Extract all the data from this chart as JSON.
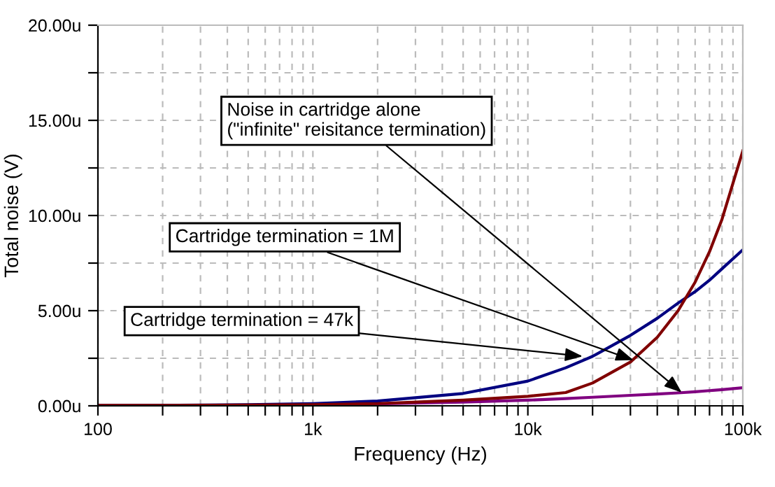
{
  "chart_data": {
    "type": "line",
    "xlabel": "Frequency (Hz)",
    "ylabel": "Total noise (V)",
    "log": "x",
    "x": [
      100,
      200,
      500,
      1000,
      2000,
      5000,
      10000,
      15000,
      20000,
      30000,
      40000,
      50000,
      60000,
      70000,
      80000,
      100000
    ],
    "series": [
      {
        "color": "#800080",
        "values": [
          null,
          null,
          null,
          0.05,
          0.1,
          0.2,
          0.3,
          0.38,
          0.45,
          0.55,
          0.62,
          0.68,
          0.74,
          0.8,
          0.85,
          0.95
        ]
      },
      {
        "color": "#000080",
        "values": [
          0.02,
          0.03,
          0.06,
          0.12,
          0.25,
          0.65,
          1.3,
          2.0,
          2.6,
          3.7,
          4.6,
          5.4,
          6.0,
          6.6,
          7.2,
          8.2
        ]
      },
      {
        "color": "#800000",
        "values": [
          0.02,
          0.02,
          0.04,
          0.06,
          0.12,
          0.3,
          0.5,
          0.7,
          1.2,
          2.3,
          3.6,
          5.0,
          6.5,
          8.1,
          9.8,
          13.4
        ]
      }
    ],
    "xlim": [
      100,
      100000
    ],
    "xticks": [
      {
        "value": 100,
        "label": "100"
      },
      {
        "value": 200,
        "label": null
      },
      {
        "value": 300,
        "label": null
      },
      {
        "value": 400,
        "label": null
      },
      {
        "value": 500,
        "label": null
      },
      {
        "value": 600,
        "label": null
      },
      {
        "value": 700,
        "label": null
      },
      {
        "value": 800,
        "label": null
      },
      {
        "value": 900,
        "label": null
      },
      {
        "value": 1000,
        "label": "1k"
      },
      {
        "value": 2000,
        "label": null
      },
      {
        "value": 3000,
        "label": null
      },
      {
        "value": 4000,
        "label": null
      },
      {
        "value": 5000,
        "label": null
      },
      {
        "value": 6000,
        "label": null
      },
      {
        "value": 7000,
        "label": null
      },
      {
        "value": 8000,
        "label": null
      },
      {
        "value": 9000,
        "label": null
      },
      {
        "value": 10000,
        "label": "10k"
      },
      {
        "value": 20000,
        "label": null
      },
      {
        "value": 30000,
        "label": null
      },
      {
        "value": 40000,
        "label": null
      },
      {
        "value": 50000,
        "label": null
      },
      {
        "value": 60000,
        "label": null
      },
      {
        "value": 70000,
        "label": null
      },
      {
        "value": 80000,
        "label": null
      },
      {
        "value": 90000,
        "label": null
      },
      {
        "value": 100000,
        "label": "100k"
      }
    ],
    "ylim": [
      0,
      20
    ],
    "yticks": [
      {
        "value": 0,
        "label": "0.00u"
      },
      {
        "value": 2.5,
        "label": null
      },
      {
        "value": 5,
        "label": "5.00u"
      },
      {
        "value": 7.5,
        "label": null
      },
      {
        "value": 10,
        "label": "10.00u"
      },
      {
        "value": 12.5,
        "label": null
      },
      {
        "value": 15,
        "label": "15.00u"
      },
      {
        "value": 17.5,
        "label": null
      },
      {
        "value": 20,
        "label": "20.00u"
      }
    ],
    "grid": true,
    "line_style": "solid",
    "annotations": [
      {
        "text": "Noise in cartridge alone\n(\"infinite\" reisitance termination)",
        "x": 52000,
        "y": 0.7
      },
      {
        "text": "Cartridge termination = 1M",
        "x": 31000,
        "y": 2.4
      },
      {
        "text": "Cartridge termination = 47k",
        "x": 18000,
        "y": 2.6
      }
    ]
  }
}
